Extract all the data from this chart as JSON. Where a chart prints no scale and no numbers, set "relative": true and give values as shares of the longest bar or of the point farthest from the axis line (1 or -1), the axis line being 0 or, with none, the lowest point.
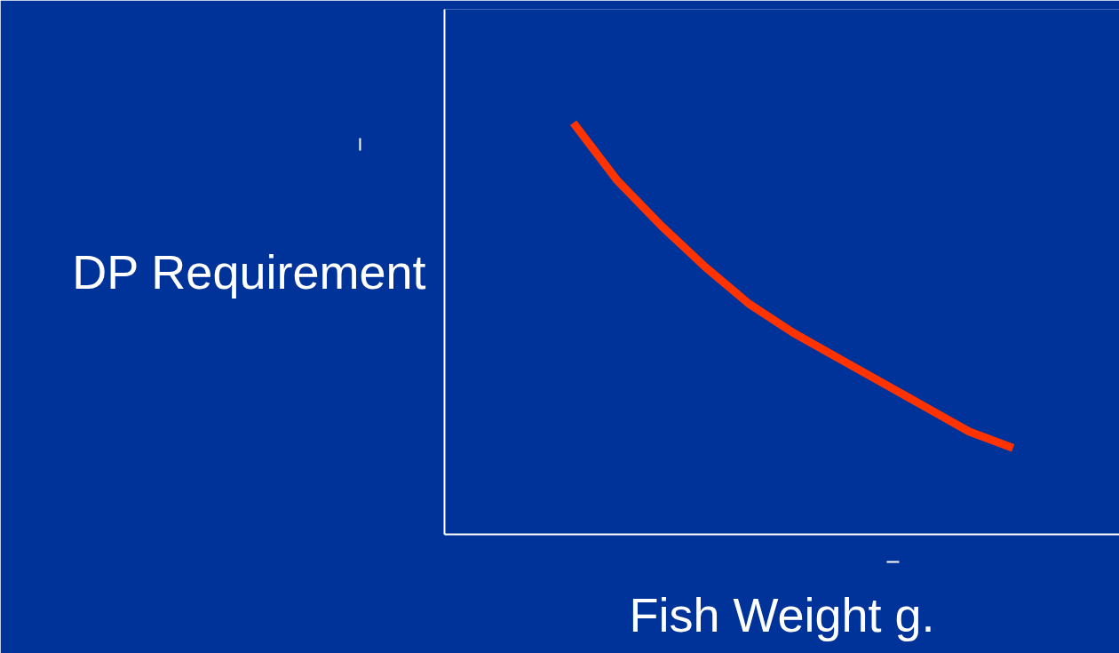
{
  "chart_data": {
    "type": "line",
    "relative": true,
    "xlabel": "Fish Weight g.",
    "ylabel": "DP Requirement",
    "categories": [
      null,
      null,
      null,
      null,
      null,
      null,
      null,
      null,
      null,
      null,
      null
    ],
    "series": [
      {
        "color": "#ff3300",
        "values": [
          1,
          0.86,
          0.75,
          0.65,
          0.56,
          0.49,
          0.43,
          0.37,
          0.31,
          0.25,
          0.21
        ]
      }
    ],
    "marker": "none",
    "line_style": "solid"
  }
}
